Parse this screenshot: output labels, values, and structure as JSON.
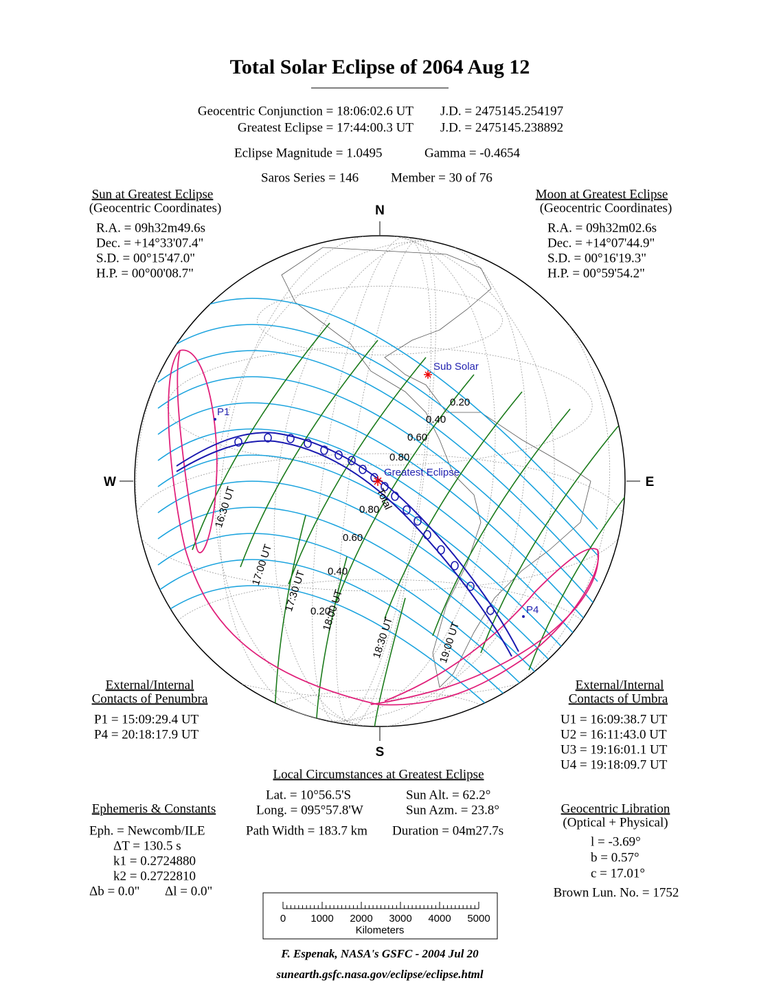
{
  "title": "Total Solar Eclipse of  2064 Aug 12",
  "header": {
    "conjunction": "Geocentric Conjunction =  18:06:02.6 UT",
    "conjunction_jd": "J.D. =  2475145.254197",
    "greatest": "Greatest Eclipse =  17:44:00.3 UT",
    "greatest_jd": "J.D. =  2475145.238892",
    "magnitude": "Eclipse Magnitude =  1.0495",
    "gamma": "Gamma = -0.4654",
    "saros": "Saros Series = 146",
    "member": "Member = 30 of 76"
  },
  "sun": {
    "heading": "Sun at Greatest Eclipse",
    "subheading": "(Geocentric Coordinates)",
    "lines": [
      "R.A. = 09h32m49.6s",
      "Dec. = +14°33'07.4\"",
      "S.D. =  00°15'47.0\"",
      "H.P. =  00°00'08.7\""
    ]
  },
  "moon": {
    "heading": "Moon at Greatest Eclipse",
    "subheading": "(Geocentric Coordinates)",
    "lines": [
      "R.A. = 09h32m02.6s",
      "Dec. = +14°07'44.9\"",
      "S.D. =  00°16'19.3\"",
      "H.P. =  00°59'54.2\""
    ]
  },
  "map": {
    "compass": {
      "n": "N",
      "s": "S",
      "e": "E",
      "w": "W"
    },
    "sub_solar": "Sub Solar",
    "greatest_eclipse": "Greatest Eclipse",
    "total": "Total",
    "p1": "P1",
    "p4": "P4",
    "magnitude_labels": [
      "0.20",
      "0.40",
      "0.60",
      "0.80",
      "0.80",
      "0.60",
      "0.40",
      "0.20"
    ],
    "time_labels": [
      "16:30 UT",
      "17:00 UT",
      "17:30 UT",
      "18:00 UT",
      "18:30 UT",
      "19:00 UT"
    ]
  },
  "penumbra": {
    "heading": [
      "External/Internal",
      "Contacts of Penumbra"
    ],
    "lines": [
      "P1 = 15:09:29.4 UT",
      "P4 = 20:18:17.9 UT"
    ]
  },
  "umbra": {
    "heading": [
      "External/Internal",
      "Contacts of Umbra"
    ],
    "lines": [
      "U1 = 16:09:38.7 UT",
      "U2 = 16:11:43.0 UT",
      "U3 = 19:16:01.1 UT",
      "U4 = 19:18:09.7 UT"
    ]
  },
  "local": {
    "heading": "Local Circumstances at Greatest Eclipse",
    "lat": "Lat. =  10°56.5'S",
    "sun_alt": "Sun Alt. =   62.2°",
    "long": "Long. = 095°57.8'W",
    "sun_azm": "Sun Azm. =  23.8°",
    "path_width": "Path Width = 183.7 km",
    "duration": "Duration =  04m27.7s"
  },
  "ephemeris": {
    "heading": "Ephemeris & Constants",
    "eph": "Eph. = Newcomb/ILE",
    "delta_t": "ΔT =    130.5 s",
    "k1": "k1 = 0.2724880",
    "k2": "k2 = 0.2722810",
    "delta_b": "Δb =   0.0\"",
    "delta_l": "Δl =   0.0\""
  },
  "libration": {
    "heading": "Geocentric Libration",
    "subheading": "(Optical + Physical)",
    "lines": [
      "l =   -3.69°",
      "b =   0.57°",
      "c =  17.01°"
    ],
    "brown": "Brown Lun. No. = 1752"
  },
  "scale": {
    "ticks": [
      "0",
      "1000",
      "2000",
      "3000",
      "4000",
      "5000"
    ],
    "unit": "Kilometers"
  },
  "footer": {
    "credit": "F. Espenak, NASA's GSFC -  2004 Jul 20",
    "url": "sunearth.gsfc.nasa.gov/eclipse/eclipse.html"
  }
}
